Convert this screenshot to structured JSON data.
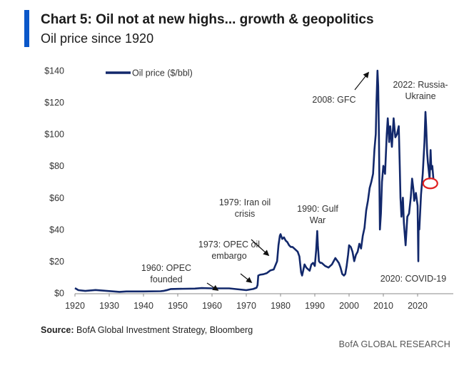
{
  "header": {
    "title": "Chart 5: Oil not at new highs... growth & geopolitics",
    "subtitle": "Oil price since 1920"
  },
  "footer": {
    "source_label": "Source:",
    "source_text": "BofA Global Investment Strategy, Bloomberg",
    "brand": "BofA GLOBAL RESEARCH"
  },
  "colors": {
    "accent": "#0a57c9",
    "series": "#12286b",
    "highlight": "#e02020"
  },
  "chart_data": {
    "type": "line",
    "title": "Chart 5: Oil not at new highs... growth & geopolitics",
    "subtitle": "Oil price since 1920",
    "xlabel": "",
    "ylabel": "",
    "xlim": [
      1920,
      2028
    ],
    "ylim": [
      0,
      140
    ],
    "x_ticks": [
      1920,
      1930,
      1940,
      1950,
      1960,
      1970,
      1980,
      1990,
      2000,
      2010,
      2020
    ],
    "y_ticks": [
      0,
      20,
      40,
      60,
      80,
      100,
      120,
      140
    ],
    "y_tick_labels": [
      "$0",
      "$20",
      "$40",
      "$60",
      "$80",
      "$100",
      "$120",
      "$140"
    ],
    "grid": false,
    "legend": {
      "position": "top-left",
      "entries": [
        "Oil price ($/bbl)"
      ]
    },
    "series": [
      {
        "name": "Oil price ($/bbl)",
        "x": [
          1920,
          1921,
          1923,
          1926,
          1930,
          1933,
          1935,
          1940,
          1945,
          1946,
          1947,
          1948,
          1950,
          1955,
          1957,
          1960,
          1965,
          1970,
          1972,
          1973,
          1973.3,
          1973.5,
          1974,
          1975,
          1976,
          1977,
          1978,
          1979,
          1979.4,
          1979.8,
          1980,
          1980.5,
          1981,
          1981.5,
          1982,
          1982.5,
          1983,
          1983.5,
          1984,
          1984.5,
          1985,
          1985.5,
          1986,
          1986.3,
          1986.6,
          1987,
          1987.5,
          1988,
          1988.5,
          1989,
          1989.5,
          1990,
          1990.4,
          1990.7,
          1990.9,
          1991.2,
          1991.6,
          1992,
          1993,
          1994,
          1994.5,
          1995,
          1996,
          1997,
          1997.5,
          1998,
          1998.5,
          1998.9,
          1999.3,
          1999.7,
          2000,
          2000.5,
          2001,
          2001.5,
          2002,
          2002.5,
          2003,
          2003.5,
          2004,
          2004.5,
          2005,
          2005.5,
          2006,
          2006.5,
          2007,
          2007.4,
          2007.8,
          2008,
          2008.3,
          2008.5,
          2008.7,
          2008.9,
          2009,
          2009.3,
          2009.6,
          2010,
          2010.5,
          2011,
          2011.3,
          2011.7,
          2012,
          2012.5,
          2013,
          2013.5,
          2014,
          2014.5,
          2014.8,
          2015,
          2015.3,
          2015.7,
          2016,
          2016.5,
          2017,
          2017.5,
          2018,
          2018.4,
          2018.8,
          2019,
          2019.5,
          2020,
          2020.2,
          2020.3,
          2020.5,
          2021,
          2021.5,
          2022,
          2022.3,
          2022.5,
          2022.8,
          2023,
          2023.2,
          2023.5,
          2023.8,
          2024,
          2024.3,
          2024.6
        ],
        "y": [
          3.1,
          1.8,
          1.3,
          1.9,
          1.2,
          0.7,
          1.0,
          1.0,
          1.1,
          1.4,
          1.9,
          2.5,
          2.6,
          2.8,
          3.1,
          2.9,
          2.9,
          1.8,
          2.5,
          3.3,
          5,
          11,
          11.5,
          11.8,
          12.5,
          14.2,
          14.8,
          20,
          30,
          36,
          37,
          34,
          35,
          33,
          32,
          30,
          29,
          29,
          28,
          27,
          26,
          23,
          13,
          11,
          14,
          18,
          16,
          15,
          14,
          18,
          19,
          17,
          27,
          39,
          30,
          20,
          19,
          19,
          17,
          16,
          17,
          18,
          22,
          19,
          16,
          12,
          11,
          12,
          17,
          24,
          30,
          29,
          26,
          20,
          24,
          26,
          31,
          28,
          36,
          41,
          52,
          58,
          66,
          70,
          75,
          90,
          100,
          120,
          140,
          130,
          100,
          60,
          40,
          50,
          70,
          80,
          75,
          100,
          110,
          95,
          105,
          92,
          110,
          98,
          100,
          105,
          80,
          60,
          48,
          60,
          44,
          30,
          48,
          50,
          60,
          72,
          65,
          58,
          63,
          55,
          20,
          42,
          40,
          62,
          75,
          95,
          114,
          105,
          88,
          82,
          78,
          72,
          90,
          78,
          80,
          72
        ]
      }
    ],
    "annotations": [
      {
        "text": [
          "1960: OPEC",
          "founded"
        ],
        "x": 1960,
        "y": 0
      },
      {
        "text": [
          "1973: OPEC oil",
          "embargo"
        ],
        "x": 1973,
        "y": 11
      },
      {
        "text": [
          "1979: Iran oil",
          "crisis"
        ],
        "x": 1979,
        "y": 30
      },
      {
        "text": [
          "1990: Gulf",
          "War"
        ],
        "x": 1990,
        "y": 39
      },
      {
        "text": [
          "2008: GFC"
        ],
        "x": 2008,
        "y": 140
      },
      {
        "text": [
          "2022: Russia-",
          "Ukraine"
        ],
        "x": 2022,
        "y": 114
      },
      {
        "text": [
          "2020: COVID-19"
        ],
        "x": 2020,
        "y": 20
      }
    ],
    "highlight": {
      "x": 2023.7,
      "y": 69,
      "shape": "ellipse"
    }
  }
}
